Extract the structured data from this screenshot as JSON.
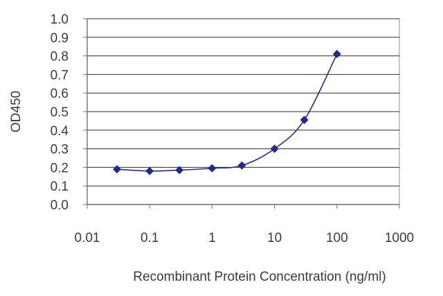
{
  "chart_data": {
    "type": "line",
    "title": "",
    "xlabel": "Recombinant Protein Concentration (ng/ml)",
    "ylabel": "OD450",
    "x_scale": "log",
    "xlim": [
      0.01,
      1000
    ],
    "ylim": [
      0.0,
      1.0
    ],
    "x_ticks": [
      "0.01",
      "0.1",
      "1",
      "10",
      "100",
      "1000"
    ],
    "y_ticks": [
      "0.0",
      "0.1",
      "0.2",
      "0.3",
      "0.4",
      "0.5",
      "0.6",
      "0.7",
      "0.8",
      "0.9",
      "1.0"
    ],
    "grid": "horizontal",
    "legend": "none",
    "series": [
      {
        "x": [
          0.03,
          0.1,
          0.3,
          1,
          3,
          10,
          30,
          100
        ],
        "y": [
          0.19,
          0.18,
          0.185,
          0.195,
          0.21,
          0.3,
          0.455,
          0.81
        ],
        "color": "#1f2a8c",
        "marker": "diamond",
        "line": "smooth"
      }
    ]
  }
}
